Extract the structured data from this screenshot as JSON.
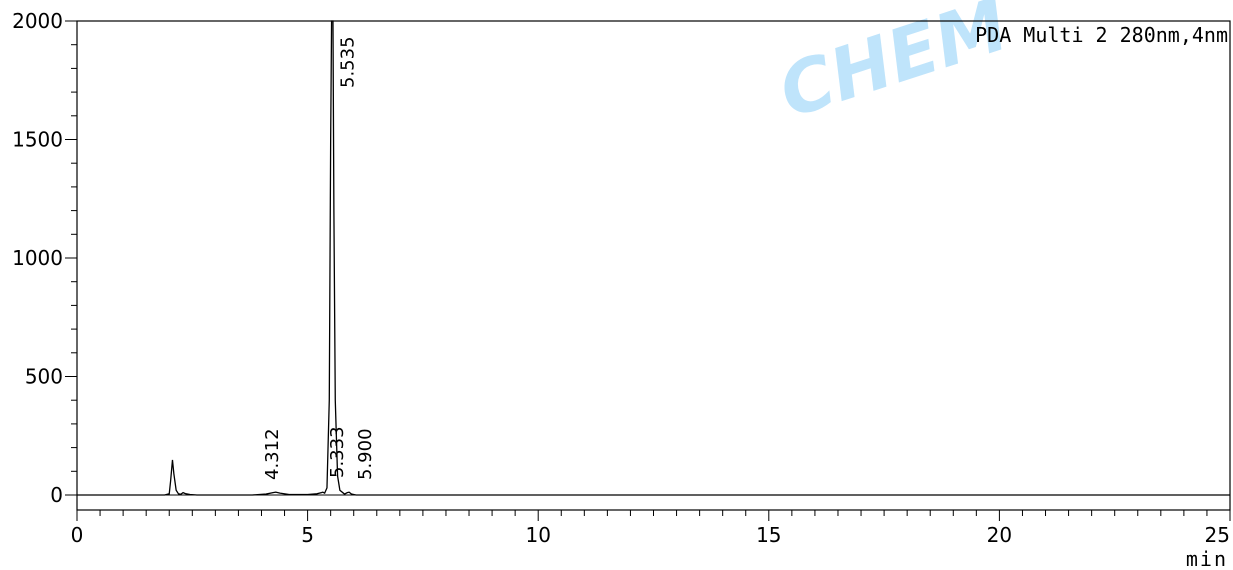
{
  "chart_data": {
    "type": "line",
    "title": "PDA Multi 2 280nm,4nm",
    "xlabel": "min",
    "ylabel": "",
    "xlim": [
      0,
      25
    ],
    "ylim": [
      -70,
      2000
    ],
    "x_ticks": [
      0,
      5,
      10,
      15,
      20,
      25
    ],
    "y_ticks": [
      0,
      500,
      1000,
      1500,
      2000
    ],
    "grid": false,
    "baseline": 0,
    "series": [
      {
        "color": "#000000",
        "x": [
          0.0,
          1.9,
          2.0,
          2.03,
          2.07,
          2.1,
          2.15,
          2.2,
          2.25,
          2.3,
          2.35,
          2.45,
          2.6,
          3.0,
          3.8,
          4.1,
          4.25,
          4.31,
          4.4,
          4.6,
          5.0,
          5.2,
          5.3,
          5.33,
          5.37,
          5.42,
          5.47,
          5.5,
          5.52,
          5.535,
          5.55,
          5.57,
          5.6,
          5.65,
          5.7,
          5.8,
          5.86,
          5.9,
          5.95,
          6.05,
          6.3,
          25.0
        ],
        "y": [
          0,
          0,
          5,
          60,
          148,
          90,
          20,
          5,
          3,
          10,
          6,
          2,
          0,
          0,
          0,
          4,
          10,
          12,
          8,
          2,
          2,
          5,
          10,
          12,
          8,
          30,
          400,
          1500,
          2050,
          2100,
          2000,
          1200,
          400,
          80,
          20,
          4,
          10,
          12,
          4,
          0,
          0,
          0
        ]
      }
    ],
    "peaks": [
      {
        "rt": 4.312,
        "label": "4.312"
      },
      {
        "rt": 5.333,
        "label": "5.333"
      },
      {
        "rt": 5.535,
        "label": "5.535"
      },
      {
        "rt": 5.9,
        "label": "5.900"
      }
    ]
  },
  "watermark": {
    "text": "CHEM",
    "color": "#bfe4fb"
  }
}
